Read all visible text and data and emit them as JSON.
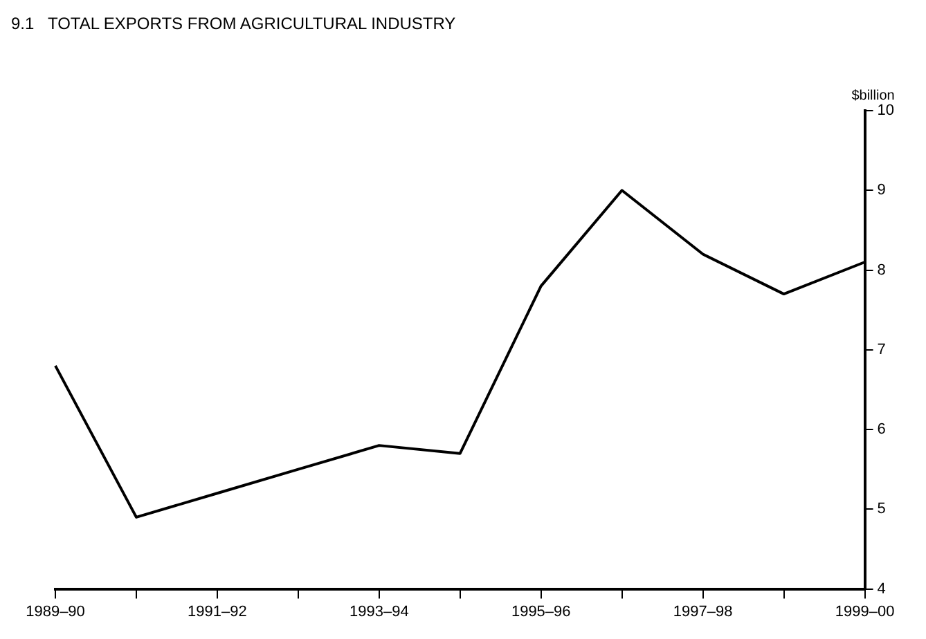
{
  "chart_data": {
    "type": "line",
    "title": "9.1   TOTAL EXPORTS FROM AGRICULTURAL INDUSTRY",
    "ylabel": "$billion",
    "categories": [
      "1989–90",
      null,
      "1991–92",
      null,
      "1993–94",
      null,
      "1995–96",
      null,
      "1997–98",
      null,
      "1999–00"
    ],
    "series": [
      {
        "color": "#000000",
        "values": [
          6.8,
          4.9,
          5.2,
          5.5,
          5.8,
          5.7,
          7.8,
          9.0,
          8.2,
          7.7,
          8.1
        ]
      }
    ],
    "ylim": [
      4,
      10
    ],
    "yticks": [
      4,
      5,
      6,
      7,
      8,
      9,
      10
    ],
    "grid": false,
    "legend": false,
    "marker": "none",
    "line_style": "solid"
  }
}
